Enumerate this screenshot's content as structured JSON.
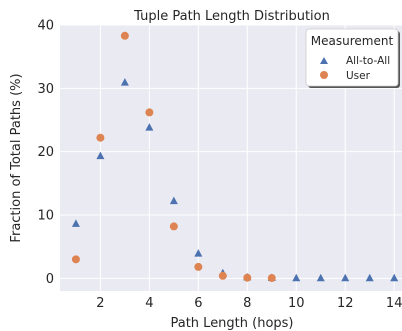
{
  "chart_data": {
    "type": "scatter",
    "title": "Tuple Path Length Distribution",
    "xlabel": "Path Length (hops)",
    "ylabel": "Fraction of Total Paths (%)",
    "xlim": [
      0.35,
      14.4
    ],
    "ylim": [
      -2,
      40
    ],
    "xticks": [
      2,
      4,
      6,
      8,
      10,
      12,
      14
    ],
    "yticks": [
      0,
      10,
      20,
      30,
      40
    ],
    "grid": true,
    "legend": {
      "title": "Measurement",
      "placement": "top-right"
    },
    "series": [
      {
        "name": "All-to-All",
        "marker": "triangle",
        "color": "#4c72b0",
        "x": [
          1,
          2,
          3,
          4,
          5,
          6,
          7,
          8,
          9,
          10,
          11,
          12,
          13,
          14
        ],
        "y": [
          8.6,
          19.3,
          30.9,
          23.8,
          12.2,
          3.9,
          0.8,
          0.15,
          0.05,
          0.02,
          0.01,
          0.01,
          0.01,
          0.01
        ]
      },
      {
        "name": "User",
        "marker": "circle",
        "color": "#dd8452",
        "x": [
          1,
          2,
          3,
          4,
          5,
          6,
          7,
          8,
          9
        ],
        "y": [
          3.0,
          22.2,
          38.3,
          26.2,
          8.2,
          1.8,
          0.4,
          0.1,
          0.05
        ]
      }
    ]
  }
}
